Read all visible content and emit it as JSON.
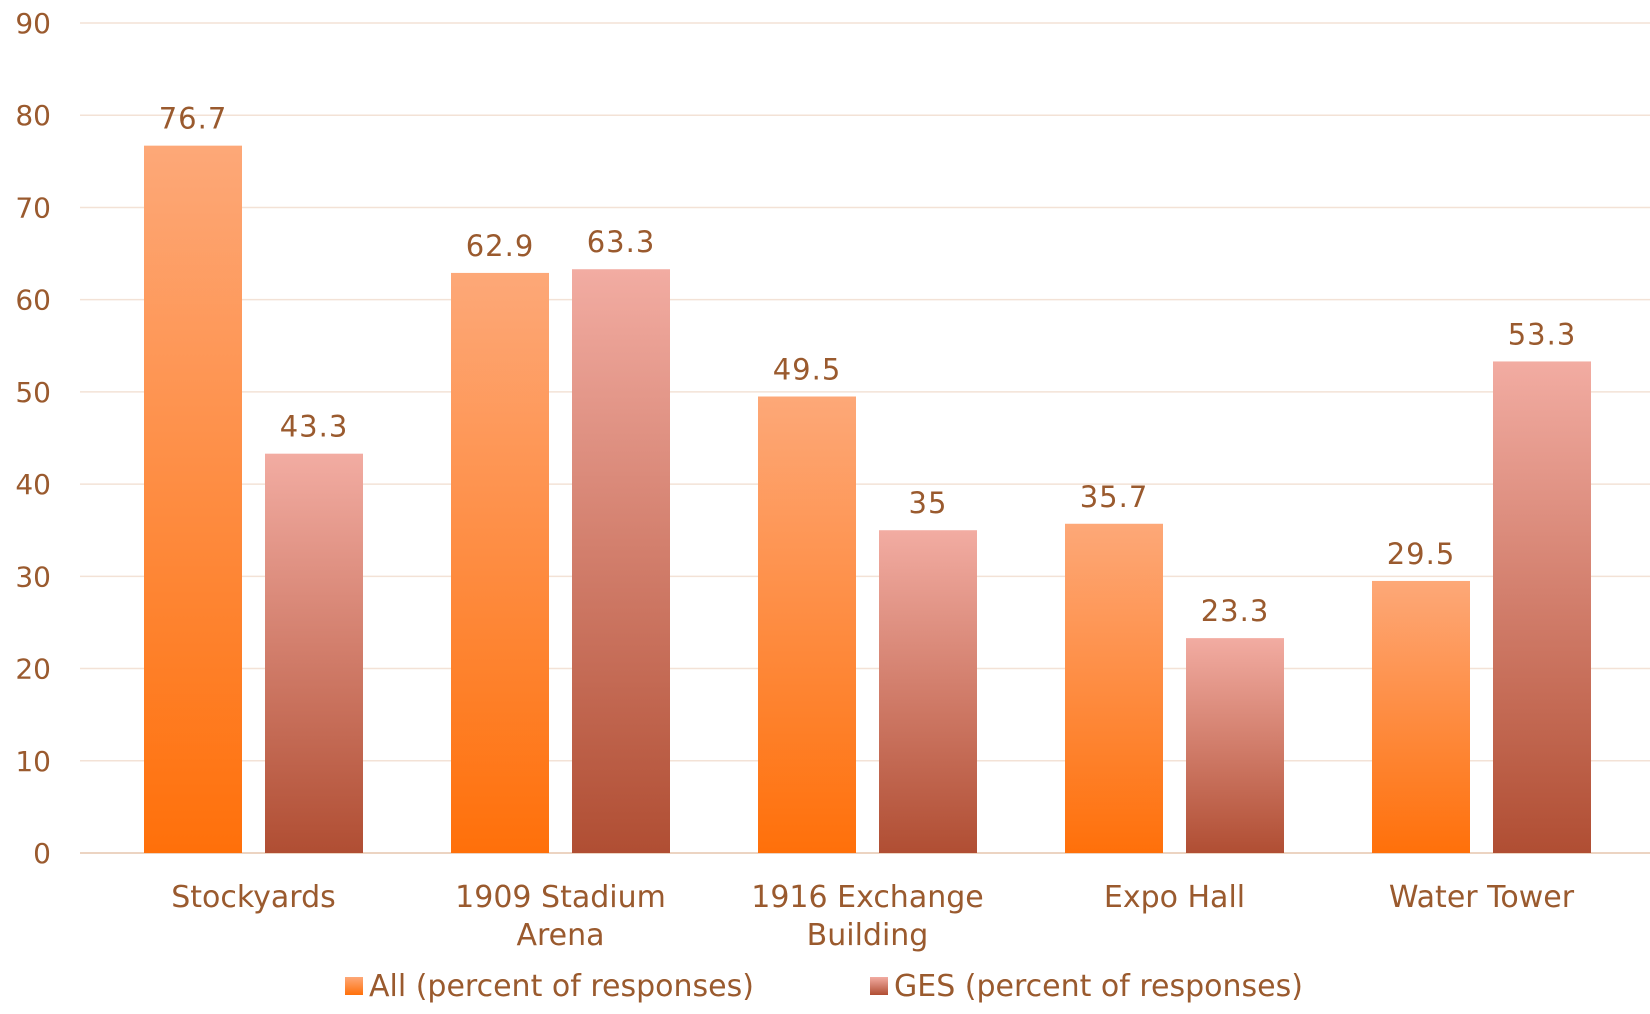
{
  "chart_data": {
    "type": "bar",
    "categories": [
      [
        "Stockyards"
      ],
      [
        "1909 Stadium",
        "Arena"
      ],
      [
        "1916 Exchange",
        "Building"
      ],
      [
        "Expo Hall"
      ],
      [
        "Water Tower"
      ]
    ],
    "series": [
      {
        "name": "All (percent of responses)",
        "values": [
          76.7,
          62.9,
          49.5,
          35.7,
          29.5
        ],
        "labels": [
          "76.7",
          "62.9",
          "49.5",
          "35.7",
          "29.5"
        ],
        "color_top": "#fda878",
        "color_bottom": "#ff700a"
      },
      {
        "name": "GES (percent of responses)",
        "values": [
          43.3,
          63.3,
          35,
          23.3,
          53.3
        ],
        "labels": [
          "43.3",
          "63.3",
          "35",
          "23.3",
          "53.3"
        ],
        "color_top": "#f2aca2",
        "color_bottom": "#b04e33"
      }
    ],
    "ylim": [
      0,
      90
    ],
    "yticks": [
      "0",
      "10",
      "20",
      "30",
      "40",
      "50",
      "60",
      "70",
      "80",
      "90"
    ],
    "grid": true,
    "legend_position": "bottom",
    "label_color": "#9a5a2e"
  }
}
